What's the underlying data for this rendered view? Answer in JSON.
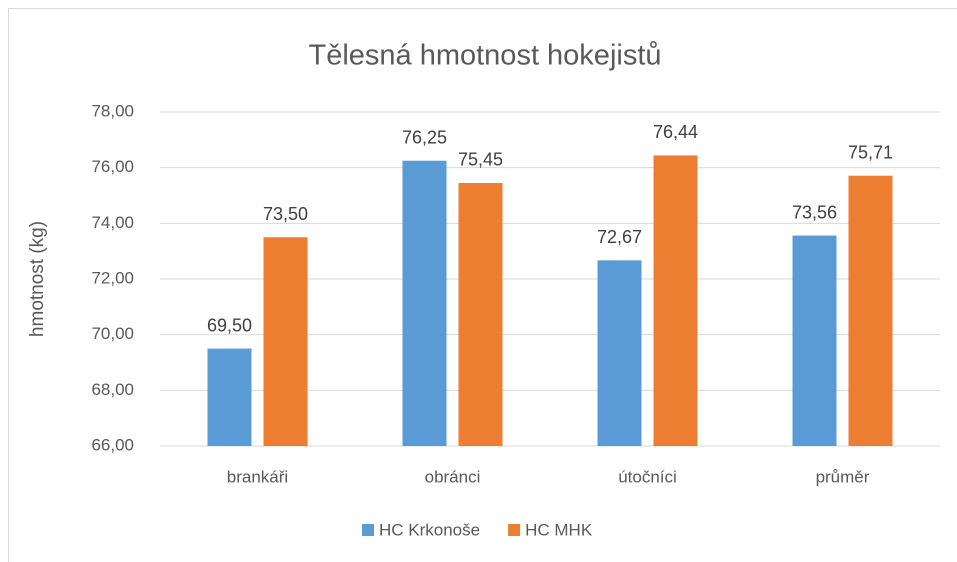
{
  "chart_data": {
    "type": "bar",
    "title": "Tělesná hmotnost hokejistů",
    "y_label": "hmotnost (kg)",
    "categories": [
      "brankáři",
      "obránci",
      "útočníci",
      "průměr"
    ],
    "series": [
      {
        "name": "HC Krkonoše",
        "color": "#5b9bd5",
        "values": [
          69.5,
          76.25,
          72.67,
          73.56
        ],
        "value_labels": [
          "69,50",
          "76,25",
          "72,67",
          "73,56"
        ]
      },
      {
        "name": "HC MHK",
        "color": "#ed7d31",
        "values": [
          73.5,
          75.45,
          76.44,
          75.71
        ],
        "value_labels": [
          "73,50",
          "75,45",
          "76,44",
          "75,71"
        ]
      }
    ],
    "ylim": [
      66,
      78
    ],
    "yticks": [
      {
        "value": 66,
        "label": "66,00"
      },
      {
        "value": 68,
        "label": "68,00"
      },
      {
        "value": 70,
        "label": "70,00"
      },
      {
        "value": 72,
        "label": "72,00"
      },
      {
        "value": 74,
        "label": "74,00"
      },
      {
        "value": 76,
        "label": "76,00"
      },
      {
        "value": 78,
        "label": "78,00"
      }
    ],
    "grid": true,
    "legend": "bottom"
  }
}
